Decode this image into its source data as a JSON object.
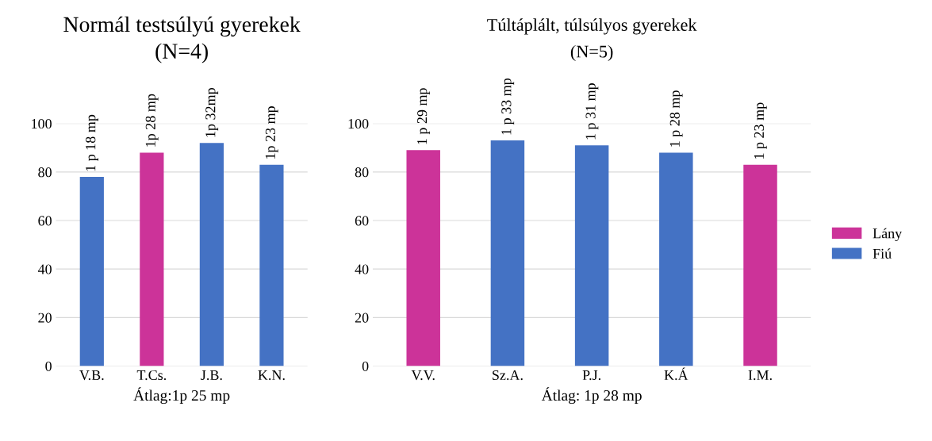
{
  "chart_data": [
    {
      "type": "bar",
      "title": "Normál testsúlyú gyerekek",
      "subtitle": "(N=4)",
      "xlabel": "Átlag:1p 25 mp",
      "categories": [
        "V.B.",
        "T.Cs.",
        "J.B.",
        "K.N."
      ],
      "series": [
        {
          "color": "#cc3399",
          "values": [
            null,
            88,
            null,
            null
          ]
        },
        {
          "color": "#4472c4",
          "values": [
            78,
            null,
            92,
            83
          ]
        }
      ],
      "value_labels": [
        "1 p 18 mp",
        "1p 28 mp",
        "1p 32mp",
        "1p 23 mp"
      ],
      "ylim": [
        0,
        100
      ],
      "yticks": [
        0,
        20,
        40,
        60,
        80,
        100
      ],
      "grid": "y"
    },
    {
      "type": "bar",
      "title": "Túltáplált, túlsúlyos gyerekek",
      "subtitle": "(N=5)",
      "xlabel": "Átlag: 1p 28 mp",
      "categories": [
        "V.V.",
        "Sz.A.",
        "P.J.",
        "K.Á",
        "I.M."
      ],
      "series": [
        {
          "name": "Lány",
          "color": "#cc3399",
          "values": [
            89,
            null,
            null,
            null,
            83
          ]
        },
        {
          "name": "Fiú",
          "color": "#4472c4",
          "values": [
            null,
            93,
            91,
            88,
            null
          ]
        }
      ],
      "value_labels": [
        "1 p 29 mp",
        "1 p 33 mp",
        "1 p 31 mp",
        "1 p 28 mp",
        "1 p 23 mp"
      ],
      "ylim": [
        0,
        100
      ],
      "yticks": [
        0,
        20,
        40,
        60,
        80,
        100
      ],
      "grid": "y",
      "legend": "right"
    }
  ]
}
